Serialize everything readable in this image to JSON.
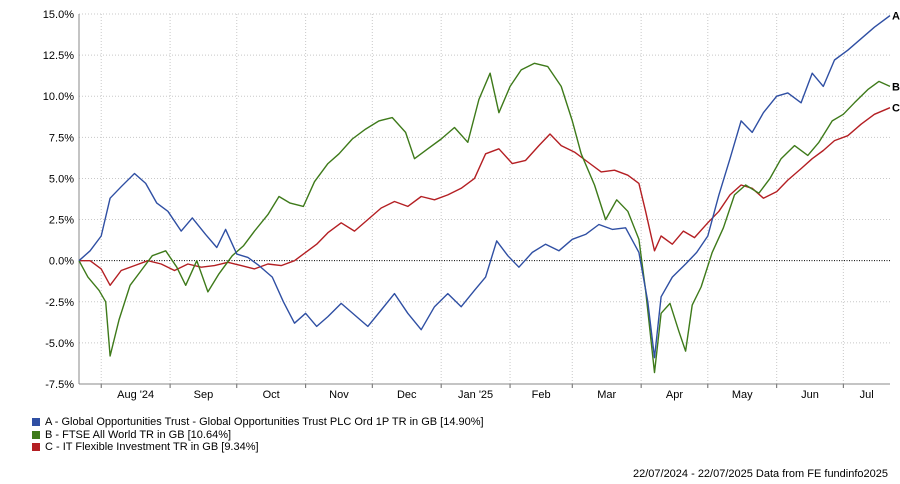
{
  "chart_data": {
    "type": "line",
    "y_ticks": [
      15.0,
      12.5,
      10.0,
      7.5,
      5.0,
      2.5,
      0.0,
      -2.5,
      -5.0,
      -7.5
    ],
    "y_tick_labels": [
      "15.0%",
      "12.5%",
      "10.0%",
      "7.5%",
      "5.0%",
      "2.5%",
      "0.0%",
      "-2.5%",
      "-5.0%",
      "-7.5%"
    ],
    "ylim": [
      -7.5,
      15.0
    ],
    "x_domain": [
      "2024-07-22",
      "2025-07-22"
    ],
    "x_ticks": [
      {
        "label": "Aug '24",
        "date": "2024-08-01"
      },
      {
        "label": "Sep",
        "date": "2024-09-01"
      },
      {
        "label": "Oct",
        "date": "2024-10-01"
      },
      {
        "label": "Nov",
        "date": "2024-11-01"
      },
      {
        "label": "Dec",
        "date": "2024-12-01"
      },
      {
        "label": "Jan '25",
        "date": "2025-01-01"
      },
      {
        "label": "Feb",
        "date": "2025-02-01"
      },
      {
        "label": "Mar",
        "date": "2025-03-01"
      },
      {
        "label": "Apr",
        "date": "2025-04-01"
      },
      {
        "label": "May",
        "date": "2025-05-01"
      },
      {
        "label": "Jun",
        "date": "2025-06-01"
      },
      {
        "label": "Jul",
        "date": "2025-07-01"
      }
    ],
    "grid": true,
    "zero_line": true,
    "series": [
      {
        "name": "A - Global Opportunities Trust - Global Opportunities Trust PLC Ord 1P TR in GB [14.90%]",
        "end_label": "A",
        "color": "#2f4fa3",
        "points": [
          [
            "2024-07-22",
            0.0
          ],
          [
            "2024-07-27",
            0.6
          ],
          [
            "2024-08-01",
            1.5
          ],
          [
            "2024-08-05",
            3.8
          ],
          [
            "2024-08-10",
            4.5
          ],
          [
            "2024-08-16",
            5.3
          ],
          [
            "2024-08-21",
            4.7
          ],
          [
            "2024-08-26",
            3.5
          ],
          [
            "2024-08-31",
            3.0
          ],
          [
            "2024-09-06",
            1.8
          ],
          [
            "2024-09-11",
            2.6
          ],
          [
            "2024-09-17",
            1.6
          ],
          [
            "2024-09-22",
            0.8
          ],
          [
            "2024-09-26",
            1.9
          ],
          [
            "2024-10-01",
            0.4
          ],
          [
            "2024-10-06",
            0.2
          ],
          [
            "2024-10-11",
            -0.3
          ],
          [
            "2024-10-17",
            -1.0
          ],
          [
            "2024-10-22",
            -2.5
          ],
          [
            "2024-10-27",
            -3.8
          ],
          [
            "2024-11-01",
            -3.2
          ],
          [
            "2024-11-06",
            -4.0
          ],
          [
            "2024-11-11",
            -3.4
          ],
          [
            "2024-11-17",
            -2.6
          ],
          [
            "2024-11-23",
            -3.3
          ],
          [
            "2024-11-29",
            -4.0
          ],
          [
            "2024-12-05",
            -3.0
          ],
          [
            "2024-12-11",
            -2.0
          ],
          [
            "2024-12-17",
            -3.2
          ],
          [
            "2024-12-23",
            -4.2
          ],
          [
            "2024-12-29",
            -2.8
          ],
          [
            "2025-01-04",
            -2.0
          ],
          [
            "2025-01-10",
            -2.8
          ],
          [
            "2025-01-16",
            -1.8
          ],
          [
            "2025-01-21",
            -1.0
          ],
          [
            "2025-01-26",
            1.2
          ],
          [
            "2025-01-31",
            0.3
          ],
          [
            "2025-02-05",
            -0.4
          ],
          [
            "2025-02-11",
            0.5
          ],
          [
            "2025-02-17",
            1.0
          ],
          [
            "2025-02-23",
            0.6
          ],
          [
            "2025-03-01",
            1.3
          ],
          [
            "2025-03-07",
            1.6
          ],
          [
            "2025-03-13",
            2.2
          ],
          [
            "2025-03-19",
            1.9
          ],
          [
            "2025-03-25",
            2.0
          ],
          [
            "2025-03-31",
            0.5
          ],
          [
            "2025-04-04",
            -2.5
          ],
          [
            "2025-04-07",
            -5.9
          ],
          [
            "2025-04-10",
            -2.2
          ],
          [
            "2025-04-15",
            -1.0
          ],
          [
            "2025-04-21",
            -0.2
          ],
          [
            "2025-04-26",
            0.5
          ],
          [
            "2025-05-01",
            1.5
          ],
          [
            "2025-05-06",
            4.0
          ],
          [
            "2025-05-11",
            6.2
          ],
          [
            "2025-05-16",
            8.5
          ],
          [
            "2025-05-21",
            7.8
          ],
          [
            "2025-05-26",
            9.0
          ],
          [
            "2025-06-01",
            10.0
          ],
          [
            "2025-06-06",
            10.2
          ],
          [
            "2025-06-12",
            9.6
          ],
          [
            "2025-06-17",
            11.4
          ],
          [
            "2025-06-22",
            10.6
          ],
          [
            "2025-06-27",
            12.2
          ],
          [
            "2025-07-03",
            12.8
          ],
          [
            "2025-07-09",
            13.5
          ],
          [
            "2025-07-15",
            14.2
          ],
          [
            "2025-07-22",
            14.9
          ]
        ]
      },
      {
        "name": "B - FTSE All World TR in GB [10.64%]",
        "end_label": "B",
        "color": "#3e7a1a",
        "points": [
          [
            "2024-07-22",
            0.0
          ],
          [
            "2024-07-26",
            -1.0
          ],
          [
            "2024-07-31",
            -1.8
          ],
          [
            "2024-08-03",
            -2.5
          ],
          [
            "2024-08-05",
            -5.8
          ],
          [
            "2024-08-09",
            -3.6
          ],
          [
            "2024-08-14",
            -1.5
          ],
          [
            "2024-08-19",
            -0.6
          ],
          [
            "2024-08-24",
            0.3
          ],
          [
            "2024-08-30",
            0.6
          ],
          [
            "2024-09-04",
            -0.4
          ],
          [
            "2024-09-08",
            -1.5
          ],
          [
            "2024-09-13",
            0.0
          ],
          [
            "2024-09-18",
            -1.9
          ],
          [
            "2024-09-23",
            -0.8
          ],
          [
            "2024-09-29",
            0.3
          ],
          [
            "2024-10-04",
            0.9
          ],
          [
            "2024-10-09",
            1.8
          ],
          [
            "2024-10-15",
            2.8
          ],
          [
            "2024-10-20",
            3.9
          ],
          [
            "2024-10-25",
            3.5
          ],
          [
            "2024-10-31",
            3.3
          ],
          [
            "2024-11-05",
            4.8
          ],
          [
            "2024-11-11",
            5.9
          ],
          [
            "2024-11-16",
            6.5
          ],
          [
            "2024-11-22",
            7.4
          ],
          [
            "2024-11-28",
            8.0
          ],
          [
            "2024-12-04",
            8.5
          ],
          [
            "2024-12-10",
            8.7
          ],
          [
            "2024-12-16",
            7.8
          ],
          [
            "2024-12-20",
            6.2
          ],
          [
            "2024-12-26",
            6.8
          ],
          [
            "2025-01-01",
            7.4
          ],
          [
            "2025-01-07",
            8.1
          ],
          [
            "2025-01-13",
            7.2
          ],
          [
            "2025-01-18",
            9.8
          ],
          [
            "2025-01-23",
            11.4
          ],
          [
            "2025-01-27",
            9.0
          ],
          [
            "2025-02-01",
            10.6
          ],
          [
            "2025-02-06",
            11.6
          ],
          [
            "2025-02-12",
            12.0
          ],
          [
            "2025-02-18",
            11.8
          ],
          [
            "2025-02-24",
            10.6
          ],
          [
            "2025-03-01",
            8.5
          ],
          [
            "2025-03-05",
            6.5
          ],
          [
            "2025-03-11",
            4.6
          ],
          [
            "2025-03-16",
            2.5
          ],
          [
            "2025-03-21",
            3.7
          ],
          [
            "2025-03-26",
            3.0
          ],
          [
            "2025-03-31",
            1.3
          ],
          [
            "2025-04-03",
            -1.8
          ],
          [
            "2025-04-07",
            -6.8
          ],
          [
            "2025-04-10",
            -3.2
          ],
          [
            "2025-04-14",
            -2.6
          ],
          [
            "2025-04-18",
            -4.3
          ],
          [
            "2025-04-21",
            -5.5
          ],
          [
            "2025-04-24",
            -2.7
          ],
          [
            "2025-04-28",
            -1.6
          ],
          [
            "2025-05-03",
            0.5
          ],
          [
            "2025-05-08",
            2.0
          ],
          [
            "2025-05-13",
            4.0
          ],
          [
            "2025-05-18",
            4.6
          ],
          [
            "2025-05-24",
            4.1
          ],
          [
            "2025-05-29",
            5.0
          ],
          [
            "2025-06-03",
            6.2
          ],
          [
            "2025-06-09",
            7.0
          ],
          [
            "2025-06-15",
            6.4
          ],
          [
            "2025-06-20",
            7.2
          ],
          [
            "2025-06-26",
            8.5
          ],
          [
            "2025-07-01",
            8.9
          ],
          [
            "2025-07-06",
            9.6
          ],
          [
            "2025-07-12",
            10.4
          ],
          [
            "2025-07-17",
            10.9
          ],
          [
            "2025-07-22",
            10.6
          ]
        ]
      },
      {
        "name": "C - IT Flexible Investment TR in GB [9.34%]",
        "end_label": "C",
        "color": "#b41f23",
        "points": [
          [
            "2024-07-22",
            0.0
          ],
          [
            "2024-07-27",
            0.0
          ],
          [
            "2024-08-01",
            -0.5
          ],
          [
            "2024-08-05",
            -1.5
          ],
          [
            "2024-08-10",
            -0.6
          ],
          [
            "2024-08-16",
            -0.3
          ],
          [
            "2024-08-22",
            0.0
          ],
          [
            "2024-08-28",
            -0.2
          ],
          [
            "2024-09-03",
            -0.6
          ],
          [
            "2024-09-09",
            -0.2
          ],
          [
            "2024-09-15",
            -0.4
          ],
          [
            "2024-09-21",
            -0.3
          ],
          [
            "2024-09-27",
            -0.1
          ],
          [
            "2024-10-03",
            -0.3
          ],
          [
            "2024-10-09",
            -0.5
          ],
          [
            "2024-10-15",
            -0.2
          ],
          [
            "2024-10-21",
            -0.3
          ],
          [
            "2024-10-27",
            0.0
          ],
          [
            "2024-11-01",
            0.5
          ],
          [
            "2024-11-06",
            1.0
          ],
          [
            "2024-11-11",
            1.7
          ],
          [
            "2024-11-17",
            2.3
          ],
          [
            "2024-11-23",
            1.8
          ],
          [
            "2024-11-29",
            2.5
          ],
          [
            "2024-12-05",
            3.2
          ],
          [
            "2024-12-11",
            3.6
          ],
          [
            "2024-12-17",
            3.3
          ],
          [
            "2024-12-23",
            3.9
          ],
          [
            "2024-12-29",
            3.7
          ],
          [
            "2025-01-04",
            4.0
          ],
          [
            "2025-01-10",
            4.4
          ],
          [
            "2025-01-16",
            5.0
          ],
          [
            "2025-01-21",
            6.5
          ],
          [
            "2025-01-27",
            6.8
          ],
          [
            "2025-02-02",
            5.9
          ],
          [
            "2025-02-08",
            6.1
          ],
          [
            "2025-02-14",
            7.0
          ],
          [
            "2025-02-19",
            7.7
          ],
          [
            "2025-02-24",
            7.0
          ],
          [
            "2025-03-02",
            6.6
          ],
          [
            "2025-03-08",
            6.0
          ],
          [
            "2025-03-14",
            5.4
          ],
          [
            "2025-03-20",
            5.5
          ],
          [
            "2025-03-26",
            5.2
          ],
          [
            "2025-03-31",
            4.7
          ],
          [
            "2025-04-03",
            3.0
          ],
          [
            "2025-04-07",
            0.6
          ],
          [
            "2025-04-10",
            1.5
          ],
          [
            "2025-04-15",
            1.0
          ],
          [
            "2025-04-20",
            1.8
          ],
          [
            "2025-04-25",
            1.4
          ],
          [
            "2025-05-01",
            2.3
          ],
          [
            "2025-05-06",
            3.0
          ],
          [
            "2025-05-11",
            4.0
          ],
          [
            "2025-05-16",
            4.6
          ],
          [
            "2025-05-21",
            4.4
          ],
          [
            "2025-05-26",
            3.8
          ],
          [
            "2025-06-01",
            4.2
          ],
          [
            "2025-06-06",
            4.9
          ],
          [
            "2025-06-12",
            5.6
          ],
          [
            "2025-06-17",
            6.2
          ],
          [
            "2025-06-22",
            6.7
          ],
          [
            "2025-06-27",
            7.3
          ],
          [
            "2025-07-03",
            7.6
          ],
          [
            "2025-07-09",
            8.3
          ],
          [
            "2025-07-15",
            8.9
          ],
          [
            "2025-07-22",
            9.3
          ]
        ]
      }
    ]
  },
  "footer": "22/07/2024 - 22/07/2025 Data from FE fundinfo2025"
}
